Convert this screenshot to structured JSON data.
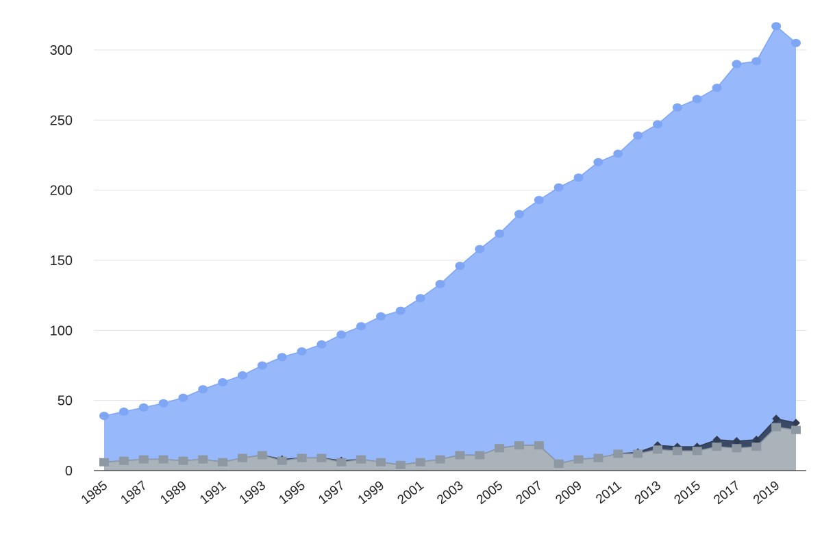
{
  "chart_data": {
    "type": "area",
    "x": [
      1985,
      1986,
      1987,
      1988,
      1989,
      1990,
      1991,
      1992,
      1993,
      1994,
      1995,
      1996,
      1997,
      1998,
      1999,
      2000,
      2001,
      2002,
      2003,
      2004,
      2005,
      2006,
      2007,
      2008,
      2009,
      2010,
      2011,
      2012,
      2013,
      2014,
      2015,
      2016,
      2017,
      2018,
      2019,
      2020
    ],
    "x_tick_labels": [
      "1985",
      "1987",
      "1989",
      "1991",
      "1993",
      "1995",
      "1997",
      "1999",
      "2001",
      "2003",
      "2005",
      "2007",
      "2009",
      "2011",
      "2013",
      "2015",
      "2017",
      "2019"
    ],
    "y_ticks": [
      0,
      50,
      100,
      150,
      200,
      250,
      300
    ],
    "ylim": [
      0,
      320
    ],
    "grid": true,
    "legend": "none",
    "title": "",
    "xlabel": "",
    "ylabel": "",
    "series": [
      {
        "color": "#7ea6f5",
        "fill": "#97b9fb",
        "marker": "circle",
        "values": [
          39,
          42,
          45,
          48,
          52,
          58,
          63,
          68,
          75,
          81,
          85,
          90,
          97,
          103,
          110,
          114,
          123,
          133,
          146,
          158,
          169,
          183,
          193,
          202,
          209,
          220,
          226,
          239,
          247,
          259,
          265,
          273,
          290,
          292,
          317,
          305
        ]
      },
      {
        "color": "#2f3b52",
        "fill": "#3a4a66",
        "marker": "diamond",
        "values": [
          6,
          7,
          8,
          8,
          7,
          8,
          6,
          9,
          11,
          8,
          9,
          9,
          7,
          8,
          6,
          4,
          6,
          8,
          11,
          11,
          16,
          18,
          18,
          5,
          8,
          9,
          12,
          13,
          18,
          17,
          17,
          22,
          21,
          22,
          37,
          34
        ]
      },
      {
        "color": "#8e98a2",
        "fill": "#aab2ba",
        "marker": "square",
        "values": [
          6,
          7,
          8,
          8,
          7,
          8,
          6,
          9,
          11,
          7,
          9,
          9,
          6,
          8,
          6,
          4,
          6,
          8,
          11,
          11,
          16,
          18,
          18,
          5,
          8,
          9,
          12,
          12,
          15,
          14,
          14,
          17,
          16,
          17,
          31,
          29
        ]
      }
    ]
  }
}
